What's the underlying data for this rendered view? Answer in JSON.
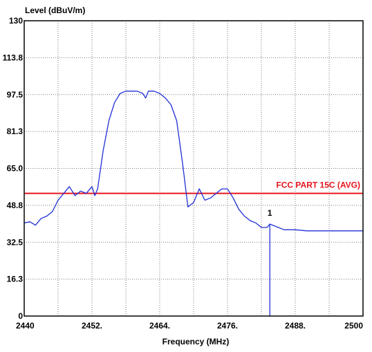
{
  "chart_data": {
    "type": "line",
    "title": "",
    "ylabel": "Level (dBuV/m)",
    "xlabel": "Frequency (MHz)",
    "xlim": [
      2440,
      2500
    ],
    "ylim": [
      0,
      130
    ],
    "x_ticks": [
      "2440",
      "2452.",
      "2464.",
      "2476.",
      "2488.",
      "2500"
    ],
    "y_ticks": [
      "0",
      "16.3",
      "32.5",
      "48.8",
      "65.0",
      "81.3",
      "97.5",
      "113.8",
      "130"
    ],
    "grid": true,
    "limit_line": {
      "label": "FCC PART 15C (AVG)",
      "value": 54,
      "color": "#e8141c"
    },
    "marker": {
      "label": "1",
      "x": 2483.5,
      "y": 40.5
    },
    "series": [
      {
        "color": "#1f2fd6",
        "x": [
          2440,
          2441,
          2442,
          2443,
          2444,
          2445,
          2446,
          2447,
          2448,
          2449,
          2450,
          2451,
          2452,
          2452.5,
          2453,
          2454,
          2455,
          2456,
          2457,
          2458,
          2459,
          2460,
          2461,
          2461.5,
          2462,
          2463,
          2464,
          2465,
          2466,
          2467,
          2468,
          2469,
          2470,
          2471,
          2472,
          2473,
          2474,
          2475,
          2476,
          2477,
          2478,
          2479,
          2480,
          2481,
          2482,
          2483,
          2483.5,
          2484,
          2485,
          2486,
          2488,
          2490,
          2492,
          2494,
          2496,
          2498,
          2500
        ],
        "y": [
          41,
          41.5,
          40,
          43,
          44,
          46,
          51,
          54,
          57,
          53,
          55,
          54,
          57,
          53,
          56,
          73,
          86,
          94,
          98,
          99,
          99,
          99,
          98,
          96,
          99,
          99,
          98,
          96,
          93,
          86,
          68,
          48,
          50,
          56,
          51,
          52,
          54,
          56,
          56,
          52,
          47,
          44,
          42,
          41,
          39,
          39,
          40.5,
          40,
          39,
          38,
          38,
          37.5,
          37.5,
          37.5,
          37.5,
          37.5,
          37.5
        ]
      }
    ]
  }
}
